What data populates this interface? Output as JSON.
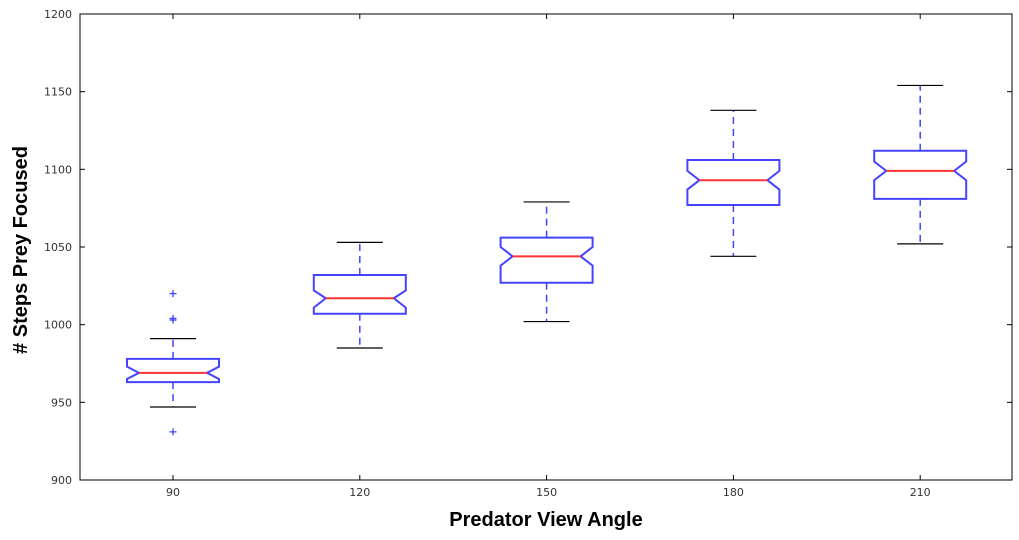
{
  "chart_data": {
    "type": "boxplot",
    "title": "",
    "xlabel": "Predator View Angle",
    "ylabel": "# Steps Prey Focused",
    "categories": [
      "90",
      "120",
      "150",
      "180",
      "210"
    ],
    "ylim": [
      900,
      1200
    ],
    "yticks": [
      "900",
      "950",
      "1000",
      "1050",
      "1100",
      "1150",
      "1200"
    ],
    "grid": false,
    "notched": true,
    "colors": {
      "box": "#4444ff",
      "median": "#ff3333",
      "whisker": "#4444ff",
      "cap": "#000000",
      "outlier": "#4444ff"
    },
    "boxes": [
      {
        "category": "90",
        "whisker_low": 947,
        "q1": 963,
        "median": 969,
        "q3": 978,
        "whisker_high": 991,
        "notch_low": 965,
        "notch_high": 973,
        "outliers": [
          931,
          1003,
          1004,
          1020
        ]
      },
      {
        "category": "120",
        "whisker_low": 985,
        "q1": 1007,
        "median": 1017,
        "q3": 1032,
        "whisker_high": 1053,
        "notch_low": 1011,
        "notch_high": 1022,
        "outliers": []
      },
      {
        "category": "150",
        "whisker_low": 1002,
        "q1": 1027,
        "median": 1044,
        "q3": 1056,
        "whisker_high": 1079,
        "notch_low": 1038,
        "notch_high": 1050,
        "outliers": []
      },
      {
        "category": "180",
        "whisker_low": 1044,
        "q1": 1077,
        "median": 1093,
        "q3": 1106,
        "whisker_high": 1138,
        "notch_low": 1087,
        "notch_high": 1099,
        "outliers": []
      },
      {
        "category": "210",
        "whisker_low": 1052,
        "q1": 1081,
        "median": 1099,
        "q3": 1112,
        "whisker_high": 1154,
        "notch_low": 1093,
        "notch_high": 1105,
        "outliers": []
      }
    ]
  }
}
